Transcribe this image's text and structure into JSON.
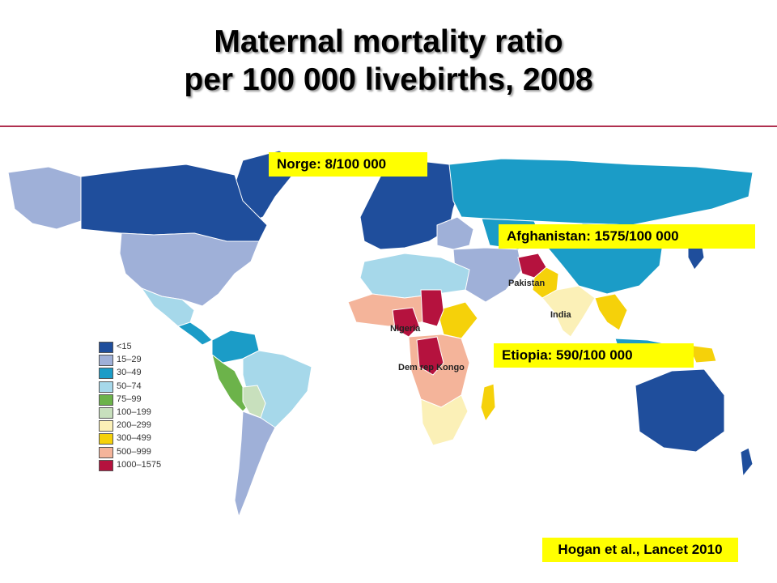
{
  "title": {
    "line1": "Maternal mortality ratio",
    "line2": "per 100 000 livebirths, 2008"
  },
  "callouts": {
    "norway": "Norge: 8/100 000",
    "afghanistan": "Afghanistan: 1575/100 000",
    "ethiopia": "Etiopia: 590/100 000"
  },
  "country_labels": {
    "pakistan": "Pakistan",
    "india": "India",
    "nigeria": "Nigeria",
    "drc": "Dem rep Kongo"
  },
  "legend": [
    {
      "label": "<15",
      "color": "#1f4e9c"
    },
    {
      "label": "15–29",
      "color": "#9fb0d8"
    },
    {
      "label": "30–49",
      "color": "#1b9cc7"
    },
    {
      "label": "50–74",
      "color": "#a6d8ea"
    },
    {
      "label": "75–99",
      "color": "#6cb34a"
    },
    {
      "label": "100–199",
      "color": "#c8e0bd"
    },
    {
      "label": "200–299",
      "color": "#fbf0b7"
    },
    {
      "label": "300–499",
      "color": "#f5d10a"
    },
    {
      "label": "500–999",
      "color": "#f4b49a"
    },
    {
      "label": "1000–1575",
      "color": "#b5123e"
    }
  ],
  "citation": "Hogan et al., Lancet 2010",
  "colors": {
    "callout_bg": "#ffff00",
    "rule": "#b03050"
  }
}
